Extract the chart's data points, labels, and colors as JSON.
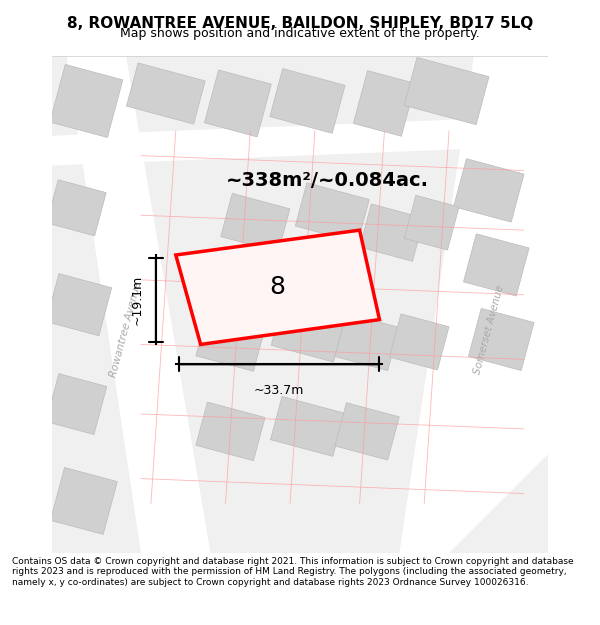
{
  "title": "8, ROWANTREE AVENUE, BAILDON, SHIPLEY, BD17 5LQ",
  "subtitle": "Map shows position and indicative extent of the property.",
  "footer": "Contains OS data © Crown copyright and database right 2021. This information is subject to Crown copyright and database rights 2023 and is reproduced with the permission of HM Land Registry. The polygons (including the associated geometry, namely x, y co-ordinates) are subject to Crown copyright and database rights 2023 Ordnance Survey 100026316.",
  "area_label": "~338m²/~0.084ac.",
  "width_label": "~33.7m",
  "height_label": "~19.1m",
  "property_number": "8",
  "bg_color": "#f5f5f5",
  "map_bg": "#f0f0f0",
  "road_color": "#ffffff",
  "building_color": "#d8d8d8",
  "building_outline": "#c0c0c0",
  "highlight_color": "#ff0000",
  "highlight_fill": "#f8f0f0",
  "street_label1": "Rowantree Avenue",
  "street_label2": "Somerset Avenue",
  "map_xlim": [
    0,
    1
  ],
  "map_ylim": [
    0,
    1
  ]
}
